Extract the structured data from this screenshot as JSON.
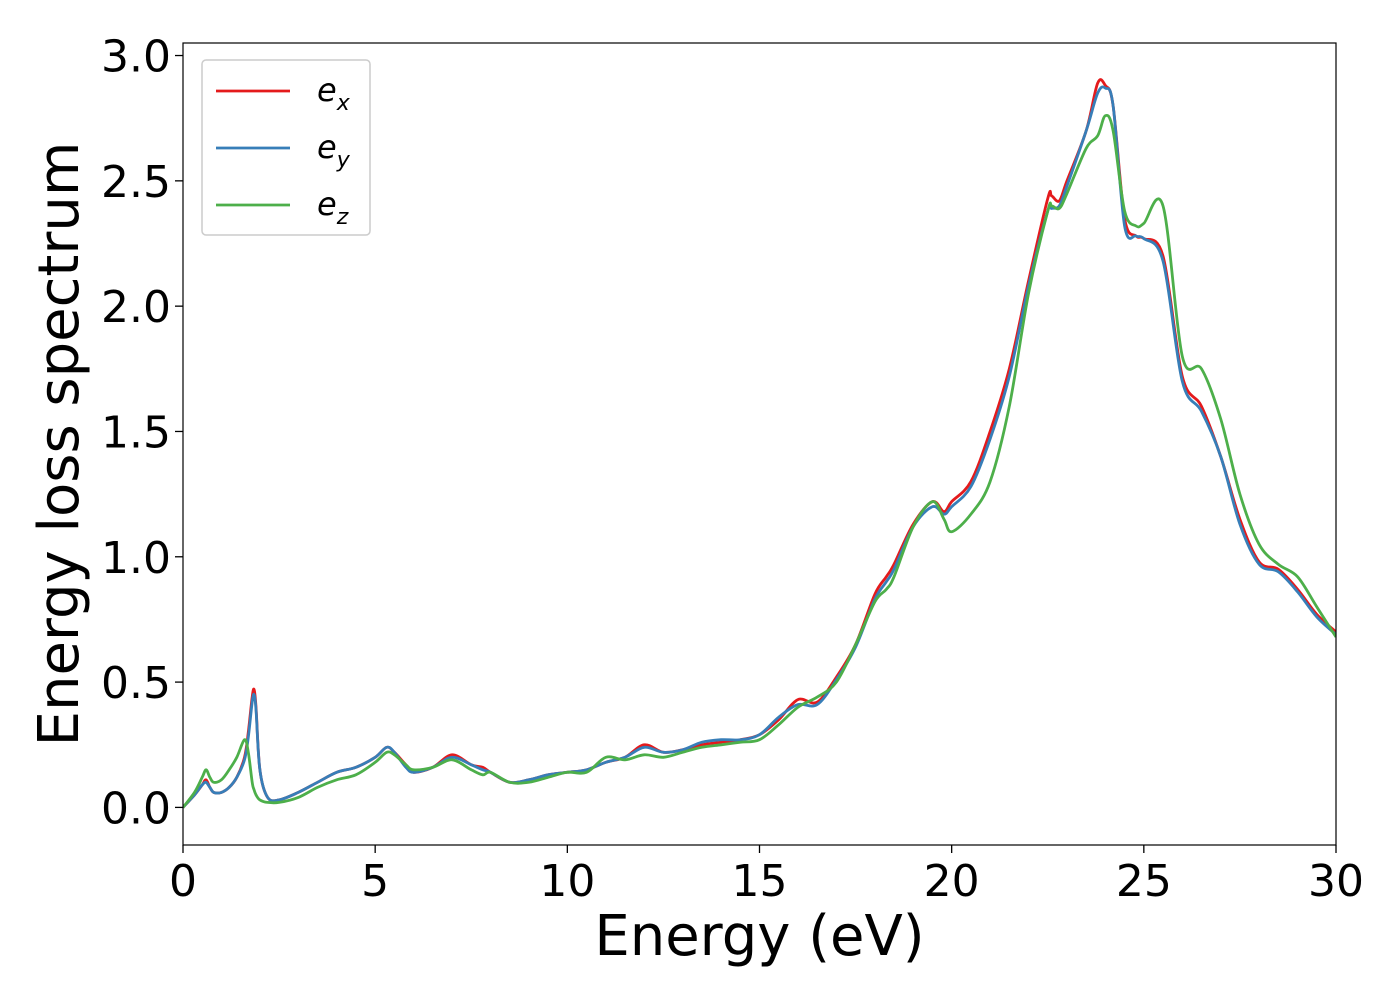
{
  "chart_data": {
    "type": "line",
    "title": "",
    "xlabel": "Energy (eV)",
    "ylabel": "Energy loss spectrum",
    "xlim": [
      0,
      30
    ],
    "ylim": [
      -0.15,
      3.05
    ],
    "xticks": [
      0,
      5,
      10,
      15,
      20,
      25,
      30
    ],
    "xtick_labels": [
      "0",
      "5",
      "10",
      "15",
      "20",
      "25",
      "30"
    ],
    "yticks": [
      0.0,
      0.5,
      1.0,
      1.5,
      2.0,
      2.5,
      3.0
    ],
    "ytick_labels": [
      "0.0",
      "0.5",
      "1.0",
      "1.5",
      "2.0",
      "2.5",
      "3.0"
    ],
    "grid": false,
    "legend_position": "top-left",
    "series": [
      {
        "legend_base": "e",
        "legend_sub": "x",
        "color": "#e41a1c",
        "x": [
          0,
          0.3,
          0.5,
          0.6,
          0.7,
          0.8,
          1.0,
          1.2,
          1.4,
          1.6,
          1.7,
          1.8,
          1.85,
          1.9,
          2.0,
          2.2,
          2.5,
          3.0,
          3.5,
          4.0,
          4.5,
          5.0,
          5.3,
          5.5,
          5.8,
          6.0,
          6.5,
          7.0,
          7.5,
          7.8,
          8.0,
          8.5,
          9.0,
          9.5,
          10.0,
          10.5,
          11.0,
          11.5,
          12.0,
          12.5,
          13.0,
          13.5,
          14.0,
          14.5,
          15.0,
          15.5,
          16.0,
          16.5,
          17.0,
          17.5,
          18.0,
          18.3,
          18.5,
          19.0,
          19.5,
          19.8,
          20.0,
          20.5,
          21.0,
          21.5,
          22.0,
          22.5,
          22.6,
          22.8,
          23.0,
          23.5,
          23.8,
          24.0,
          24.2,
          24.5,
          24.8,
          25.0,
          25.5,
          26.0,
          26.5,
          27.0,
          27.5,
          28.0,
          28.5,
          29.0,
          29.5,
          30.0
        ],
        "y": [
          0.0,
          0.05,
          0.09,
          0.11,
          0.08,
          0.06,
          0.06,
          0.08,
          0.12,
          0.2,
          0.3,
          0.44,
          0.47,
          0.4,
          0.15,
          0.04,
          0.03,
          0.06,
          0.1,
          0.14,
          0.16,
          0.2,
          0.24,
          0.22,
          0.17,
          0.14,
          0.16,
          0.21,
          0.17,
          0.16,
          0.14,
          0.1,
          0.11,
          0.13,
          0.14,
          0.15,
          0.18,
          0.2,
          0.25,
          0.22,
          0.23,
          0.25,
          0.26,
          0.27,
          0.29,
          0.35,
          0.43,
          0.42,
          0.52,
          0.65,
          0.85,
          0.92,
          0.97,
          1.13,
          1.22,
          1.18,
          1.22,
          1.3,
          1.5,
          1.75,
          2.1,
          2.43,
          2.44,
          2.42,
          2.5,
          2.7,
          2.89,
          2.88,
          2.8,
          2.35,
          2.28,
          2.27,
          2.2,
          1.72,
          1.6,
          1.4,
          1.15,
          0.98,
          0.95,
          0.87,
          0.77,
          0.7
        ]
      },
      {
        "legend_base": "e",
        "legend_sub": "y",
        "color": "#377eb8",
        "x": [
          0,
          0.3,
          0.5,
          0.6,
          0.7,
          0.8,
          1.0,
          1.2,
          1.4,
          1.6,
          1.7,
          1.8,
          1.85,
          1.9,
          2.0,
          2.2,
          2.5,
          3.0,
          3.5,
          4.0,
          4.5,
          5.0,
          5.3,
          5.5,
          5.8,
          6.0,
          6.5,
          7.0,
          7.5,
          7.8,
          8.0,
          8.5,
          9.0,
          9.5,
          10.0,
          10.5,
          11.0,
          11.5,
          12.0,
          12.5,
          13.0,
          13.5,
          14.0,
          14.5,
          15.0,
          15.5,
          16.0,
          16.5,
          17.0,
          17.5,
          18.0,
          18.3,
          18.5,
          19.0,
          19.5,
          19.8,
          20.0,
          20.5,
          21.0,
          21.5,
          22.0,
          22.5,
          22.6,
          22.8,
          23.0,
          23.5,
          23.8,
          24.0,
          24.2,
          24.5,
          24.8,
          25.0,
          25.5,
          26.0,
          26.5,
          27.0,
          27.5,
          28.0,
          28.5,
          29.0,
          29.5,
          30.0
        ],
        "y": [
          0.0,
          0.05,
          0.09,
          0.1,
          0.08,
          0.06,
          0.06,
          0.08,
          0.12,
          0.19,
          0.28,
          0.42,
          0.45,
          0.39,
          0.15,
          0.04,
          0.03,
          0.06,
          0.1,
          0.14,
          0.16,
          0.2,
          0.24,
          0.22,
          0.16,
          0.14,
          0.16,
          0.2,
          0.17,
          0.15,
          0.14,
          0.1,
          0.11,
          0.13,
          0.14,
          0.15,
          0.18,
          0.2,
          0.24,
          0.22,
          0.23,
          0.26,
          0.27,
          0.27,
          0.29,
          0.36,
          0.41,
          0.41,
          0.51,
          0.64,
          0.83,
          0.9,
          0.95,
          1.12,
          1.2,
          1.17,
          1.2,
          1.28,
          1.47,
          1.72,
          2.08,
          2.38,
          2.39,
          2.4,
          2.48,
          2.7,
          2.85,
          2.87,
          2.8,
          2.32,
          2.28,
          2.27,
          2.18,
          1.7,
          1.58,
          1.4,
          1.13,
          0.97,
          0.94,
          0.86,
          0.76,
          0.69
        ]
      },
      {
        "legend_base": "e",
        "legend_sub": "z",
        "color": "#4daf4a",
        "x": [
          0,
          0.3,
          0.5,
          0.6,
          0.7,
          0.8,
          1.0,
          1.2,
          1.4,
          1.6,
          1.7,
          1.8,
          1.85,
          1.9,
          2.0,
          2.2,
          2.5,
          3.0,
          3.5,
          4.0,
          4.5,
          5.0,
          5.3,
          5.5,
          5.8,
          6.0,
          6.5,
          7.0,
          7.5,
          7.8,
          8.0,
          8.5,
          9.0,
          9.5,
          10.0,
          10.5,
          11.0,
          11.5,
          12.0,
          12.5,
          13.0,
          13.5,
          14.0,
          14.5,
          15.0,
          15.5,
          16.0,
          16.5,
          17.0,
          17.5,
          18.0,
          18.3,
          18.5,
          19.0,
          19.5,
          19.8,
          20.0,
          20.5,
          21.0,
          21.5,
          22.0,
          22.5,
          22.6,
          22.8,
          23.0,
          23.5,
          23.8,
          24.0,
          24.2,
          24.5,
          24.8,
          25.0,
          25.5,
          26.0,
          26.5,
          27.0,
          27.5,
          28.0,
          28.5,
          29.0,
          29.5,
          30.0
        ],
        "y": [
          0.0,
          0.06,
          0.12,
          0.15,
          0.12,
          0.1,
          0.11,
          0.15,
          0.2,
          0.27,
          0.22,
          0.1,
          0.07,
          0.05,
          0.03,
          0.02,
          0.02,
          0.04,
          0.08,
          0.11,
          0.13,
          0.18,
          0.22,
          0.21,
          0.17,
          0.15,
          0.16,
          0.19,
          0.15,
          0.13,
          0.14,
          0.1,
          0.1,
          0.12,
          0.14,
          0.14,
          0.2,
          0.19,
          0.21,
          0.2,
          0.22,
          0.24,
          0.25,
          0.26,
          0.27,
          0.33,
          0.4,
          0.44,
          0.5,
          0.65,
          0.82,
          0.87,
          0.92,
          1.12,
          1.22,
          1.15,
          1.1,
          1.17,
          1.3,
          1.6,
          2.05,
          2.38,
          2.4,
          2.39,
          2.45,
          2.63,
          2.68,
          2.76,
          2.7,
          2.38,
          2.32,
          2.33,
          2.4,
          1.8,
          1.75,
          1.55,
          1.25,
          1.05,
          0.97,
          0.92,
          0.8,
          0.68
        ]
      }
    ]
  }
}
